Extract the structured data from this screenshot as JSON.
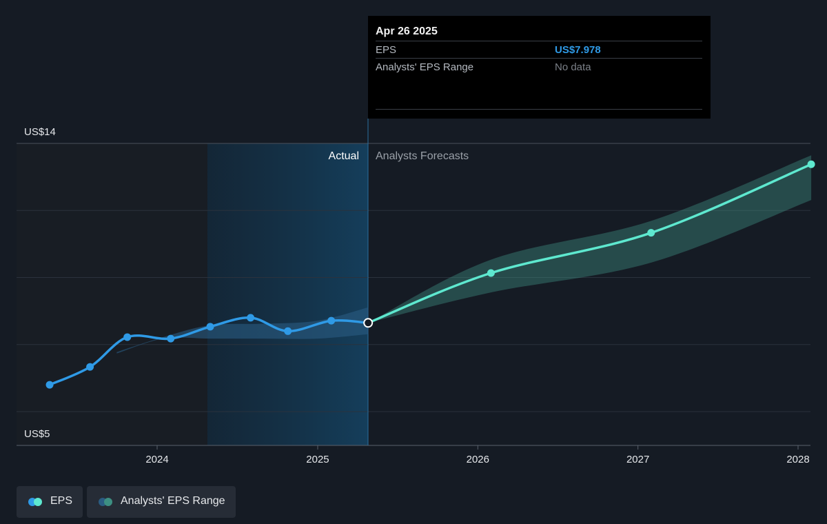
{
  "chart_data": {
    "type": "line",
    "y_axis": {
      "top_label": "US$14",
      "bottom_label": "US$5",
      "ylim": [
        5,
        14
      ]
    },
    "x_axis": {
      "ticks": [
        "2024",
        "2025",
        "2026",
        "2027",
        "2028"
      ]
    },
    "regions": {
      "actual_label": "Actual",
      "forecast_label": "Analysts Forecasts"
    },
    "series": [
      {
        "name": "EPS",
        "role": "actual",
        "color": "#2f9ae6",
        "points": [
          {
            "x": "2023-05-01",
            "y": 5.9
          },
          {
            "x": "2023-08-01",
            "y": 6.5
          },
          {
            "x": "2023-10-25",
            "y": 7.5
          },
          {
            "x": "2024-02-01",
            "y": 7.45
          },
          {
            "x": "2024-05-01",
            "y": 7.85
          },
          {
            "x": "2024-08-01",
            "y": 8.15
          },
          {
            "x": "2024-10-25",
            "y": 7.7
          },
          {
            "x": "2025-02-01",
            "y": 8.05
          },
          {
            "x": "2025-04-26",
            "y": 7.978
          }
        ]
      },
      {
        "name": "EPS",
        "role": "forecast",
        "color": "#5ee8cf",
        "points": [
          {
            "x": "2025-04-26",
            "y": 7.978
          },
          {
            "x": "2026-01-31",
            "y": 9.65
          },
          {
            "x": "2027-01-31",
            "y": 11.0
          },
          {
            "x": "2028-01-31",
            "y": 13.3
          }
        ]
      }
    ],
    "ranges": [
      {
        "name": "Analysts' EPS Range",
        "role": "past",
        "color": "#2f9ae6",
        "points": [
          {
            "x": "2023-10-01",
            "low": 6.95,
            "high": 7.0
          },
          {
            "x": "2024-01-15",
            "low": 7.45,
            "high": 7.5
          },
          {
            "x": "2024-05-01",
            "low": 7.45,
            "high": 7.9
          },
          {
            "x": "2024-09-01",
            "low": 7.45,
            "high": 7.95
          },
          {
            "x": "2025-01-01",
            "low": 7.45,
            "high": 8.05
          },
          {
            "x": "2025-04-26",
            "low": 7.6,
            "high": 8.5
          }
        ]
      },
      {
        "name": "Analysts' EPS Range",
        "role": "forecast",
        "color": "#5ee8cf",
        "points": [
          {
            "x": "2025-04-26",
            "low": 7.978,
            "high": 7.978
          },
          {
            "x": "2026-01-31",
            "low": 9.0,
            "high": 10.1
          },
          {
            "x": "2027-01-31",
            "low": 10.0,
            "high": 11.4
          },
          {
            "x": "2028-01-31",
            "low": 12.1,
            "high": 13.6
          }
        ]
      }
    ],
    "highlighted_point": {
      "x": "2025-04-26",
      "y": 7.978
    }
  },
  "tooltip": {
    "date": "Apr 26 2025",
    "rows": [
      {
        "label": "EPS",
        "value": "US$7.978"
      },
      {
        "label": "Analysts' EPS Range",
        "value": "No data"
      }
    ]
  },
  "legend": [
    {
      "label": "EPS",
      "colors": [
        "#2f9ae6",
        "#5ee8cf"
      ]
    },
    {
      "label": "Analysts' EPS Range",
      "colors": [
        "#2a5c82",
        "#3d8f82"
      ]
    }
  ]
}
